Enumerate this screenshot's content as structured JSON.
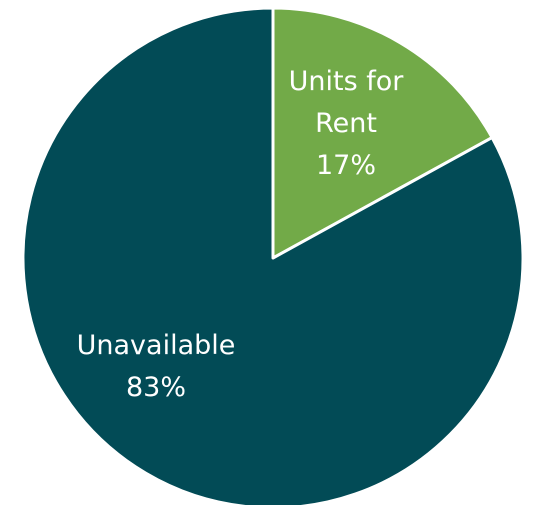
{
  "chart_data": {
    "type": "pie",
    "categories": [
      "Units for Rent",
      "Unavailable"
    ],
    "values": [
      17,
      83
    ],
    "value_labels": [
      "17%",
      "83%"
    ],
    "colors": [
      "#72aa48",
      "#024b56"
    ]
  }
}
